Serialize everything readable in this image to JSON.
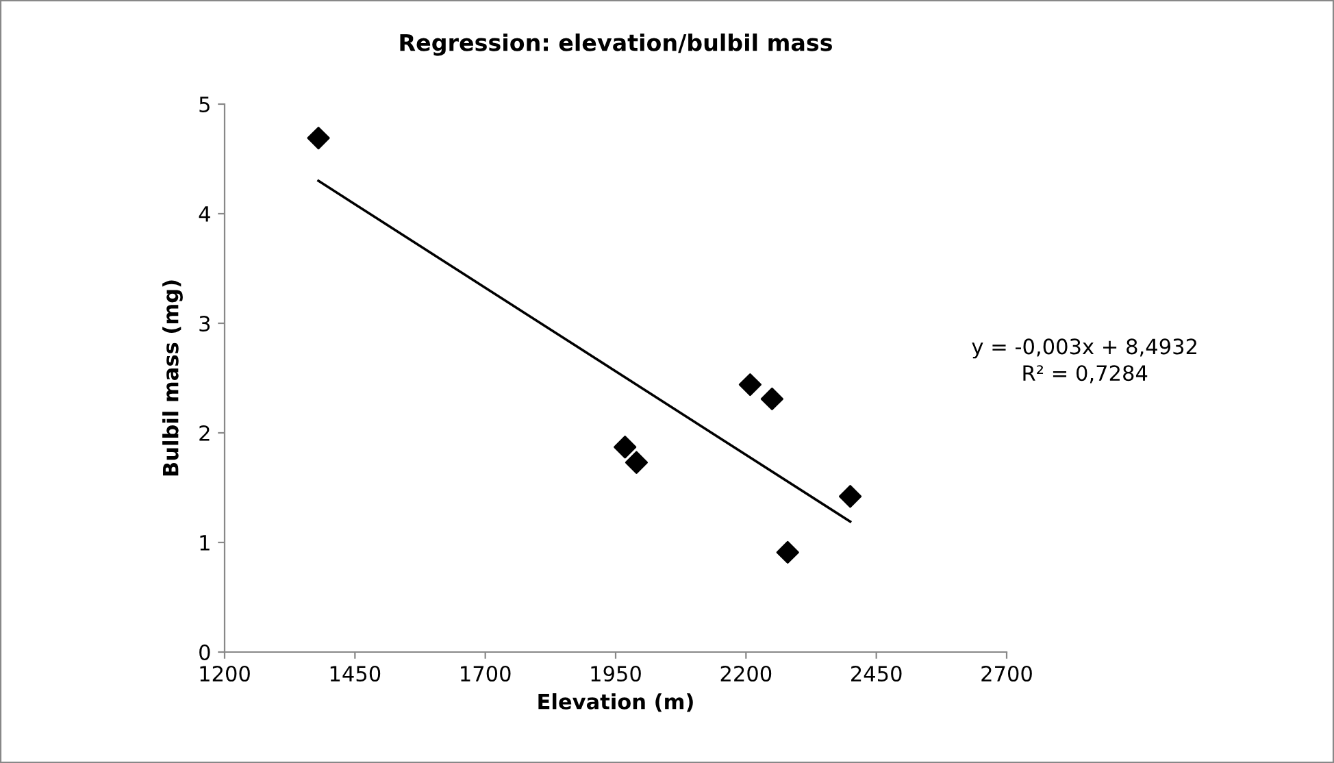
{
  "chart_data": {
    "type": "scatter",
    "title": "Regression: elevation/bulbil mass",
    "xlabel": "Elevation (m)",
    "ylabel": "Bulbil mass (mg)",
    "series": [
      {
        "color": "#000000",
        "marker": "diamond",
        "x": [
          1380,
          1968,
          1990,
          2208,
          2250,
          2280,
          2400
        ],
        "values": [
          4.69,
          1.87,
          1.73,
          2.44,
          2.31,
          0.91,
          1.42
        ]
      },
      {
        "type": "line",
        "color": "#000000",
        "marker": "none",
        "line_style": "solid",
        "x": [
          1380,
          2400
        ],
        "values": [
          4.3,
          1.19
        ]
      }
    ],
    "annotations": [
      "y = -0,003x + 8,4932\nR² = 0,7284"
    ],
    "xlim": [
      1200,
      2700
    ],
    "xticks": [
      1200,
      1450,
      1700,
      1950,
      2200,
      2450,
      2700
    ],
    "ylim": [
      0,
      5
    ],
    "yticks": [
      0,
      1,
      2,
      3,
      4,
      5
    ],
    "grid": false,
    "legend": false
  }
}
